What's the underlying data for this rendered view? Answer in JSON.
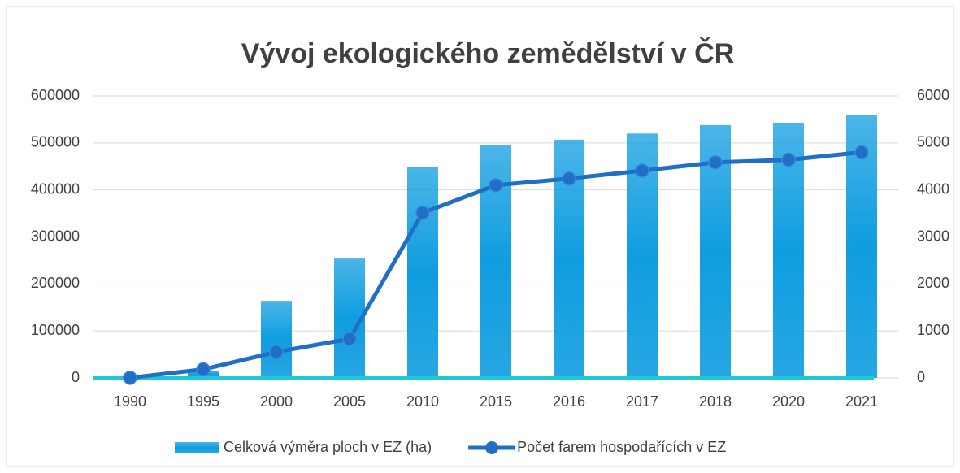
{
  "chart_data": {
    "type": "bar_line",
    "title": "Vývoj ekologického zemědělství v ČR",
    "categories": [
      "1990",
      "1995",
      "2000",
      "2005",
      "2010",
      "2015",
      "2016",
      "2017",
      "2018",
      "2020",
      "2021"
    ],
    "series": [
      {
        "name": "Celková výměra ploch v EZ (ha)",
        "type": "bar",
        "color": "#0f9de0",
        "axis": "y",
        "values": [
          0,
          15000,
          164000,
          254000,
          448000,
          495000,
          507000,
          520000,
          538000,
          543000,
          559000
        ]
      },
      {
        "name": "Počet farem hospodařících v EZ",
        "type": "line",
        "color": "#1f6fc6",
        "axis": "y2",
        "values": [
          3,
          182,
          553,
          830,
          3512,
          4100,
          4240,
          4410,
          4585,
          4640,
          4800
        ]
      }
    ],
    "ylim": [
      0,
      600000
    ],
    "yticks": [
      0,
      100000,
      200000,
      300000,
      400000,
      500000,
      600000
    ],
    "y2lim": [
      0,
      6000
    ],
    "y2ticks": [
      0,
      1000,
      2000,
      3000,
      4000,
      5000,
      6000
    ],
    "grid": true,
    "legend": "bottom"
  }
}
